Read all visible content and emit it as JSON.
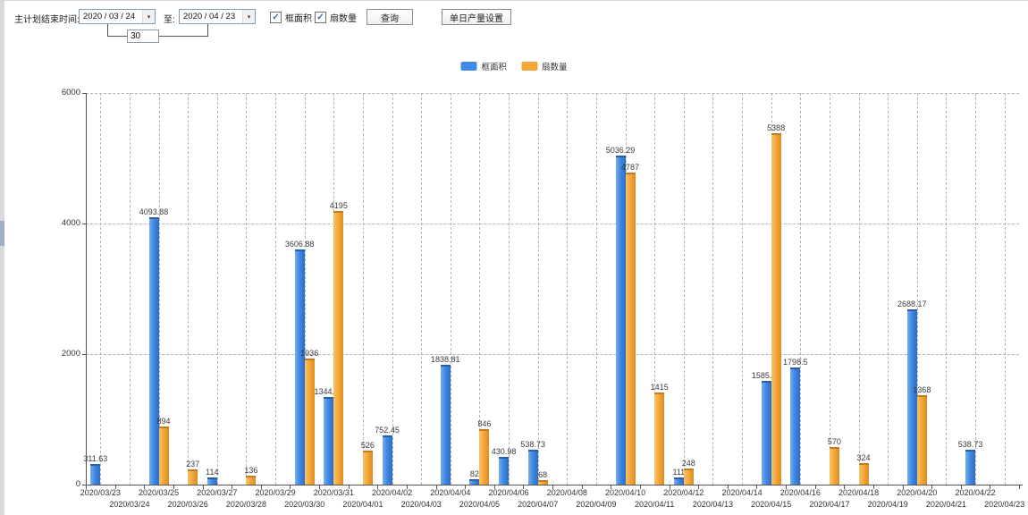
{
  "toolbar": {
    "main_label": "主计划结束时间:",
    "date_from": "2020 / 03 / 24",
    "to_label": "至:",
    "date_to": "2020 / 04 / 23",
    "days_between": "30",
    "checkbox_frame_area": "框面积",
    "checkbox_fan_count": "扇数量",
    "query_button": "查询",
    "daily_output_button": "单日产量设置"
  },
  "legend": {
    "series1": "框面积",
    "series2": "扇数量"
  },
  "colors": {
    "blue": "#4189e4",
    "orange": "#f5a83a"
  },
  "chart_data": {
    "type": "bar",
    "title": "",
    "xlabel": "",
    "ylabel": "",
    "ylim": [
      0,
      6000
    ],
    "yticks": [
      0,
      2000,
      4000,
      6000
    ],
    "grid": true,
    "legend_position": "top",
    "categories": [
      "2020/03/23",
      "2020/03/24",
      "2020/03/25",
      "2020/03/26",
      "2020/03/27",
      "2020/03/28",
      "2020/03/29",
      "2020/03/30",
      "2020/03/31",
      "2020/04/01",
      "2020/04/02",
      "2020/04/03",
      "2020/04/04",
      "2020/04/05",
      "2020/04/06",
      "2020/04/07",
      "2020/04/08",
      "2020/04/09",
      "2020/04/10",
      "2020/04/11",
      "2020/04/12",
      "2020/04/13",
      "2020/04/14",
      "2020/04/15",
      "2020/04/16",
      "2020/04/17",
      "2020/04/18",
      "2020/04/19",
      "2020/04/20",
      "2020/04/21",
      "2020/04/22",
      "2020/04/23"
    ],
    "series": [
      {
        "name": "框面积",
        "color": "#4189e4",
        "values": [
          311.63,
          null,
          4093.88,
          null,
          114,
          null,
          null,
          3606.88,
          1344.95,
          null,
          752.45,
          null,
          1838.81,
          82,
          430.98,
          538.73,
          null,
          null,
          5036.29,
          null,
          111,
          null,
          null,
          1585.96,
          1798.5,
          null,
          null,
          null,
          2688.17,
          null,
          538.73,
          null
        ]
      },
      {
        "name": "扇数量",
        "color": "#f5a83a",
        "values": [
          null,
          null,
          894,
          237,
          null,
          136,
          null,
          1936,
          4195,
          526,
          null,
          null,
          null,
          846,
          null,
          68,
          null,
          null,
          4787,
          1415,
          248,
          null,
          null,
          5388,
          null,
          570,
          324,
          null,
          1368,
          null,
          null,
          null
        ]
      }
    ]
  }
}
